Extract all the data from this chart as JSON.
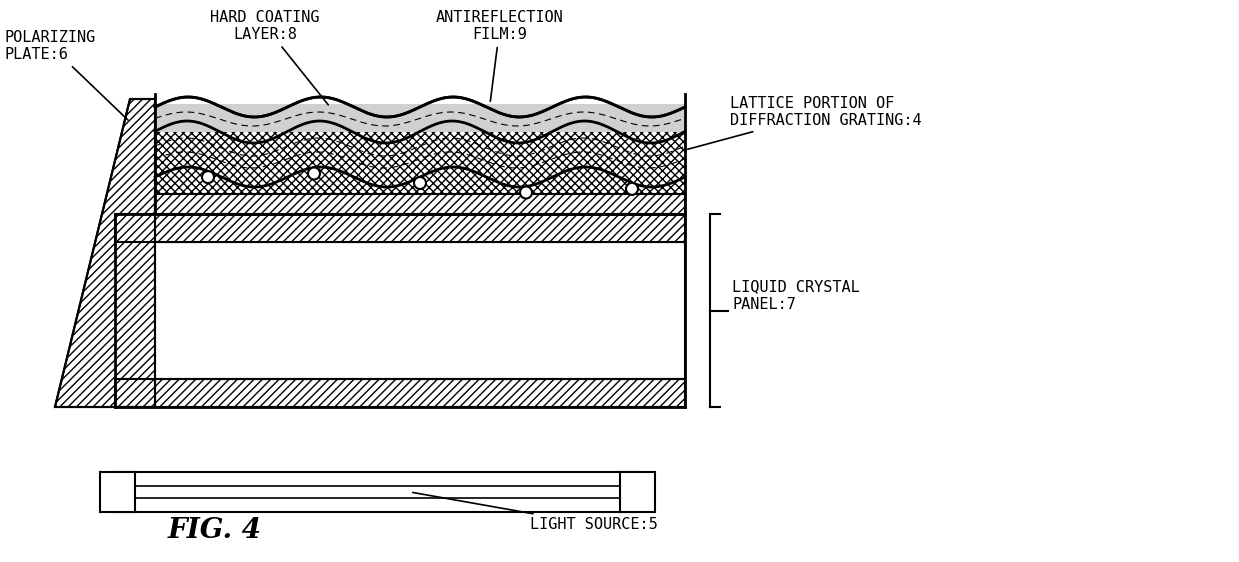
{
  "bg_color": "#ffffff",
  "line_color": "#000000",
  "title": "FIG. 4",
  "labels": {
    "polarizing_plate": "POLARIZING\nPLATE:6",
    "hard_coating": "HARD COATING\nLAYER:8",
    "antireflection": "ANTIREFLECTION\nFILM:9",
    "lattice_portion": "LATTICE PORTION OF\nDIFFRACTION GRATING:4",
    "liquid_crystal": "LIQUID CRYSTAL\nPANEL:7",
    "light_source": "LIGHT SOURCE:5"
  },
  "font_size_labels": 11,
  "font_size_title": 20
}
